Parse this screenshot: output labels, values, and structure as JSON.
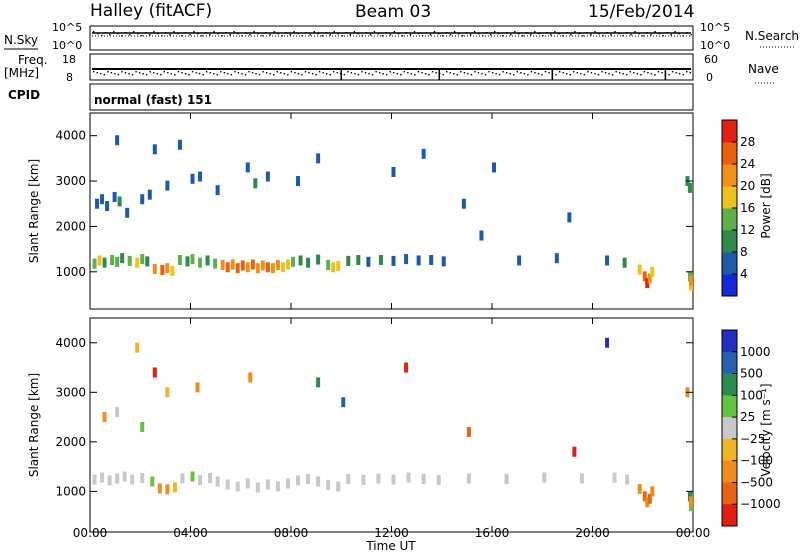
{
  "header": {
    "station": "Halley (fitACF)",
    "beam": "Beam 03",
    "date": "15/Feb/2014"
  },
  "top_panels": {
    "nsky_label": "N.Sky",
    "nsky_ticks": [
      "10^5",
      "10^0"
    ],
    "nsearch_label": "N.Search",
    "nsearch_ticks": [
      "10^5",
      "10^0"
    ],
    "freq_label_top": "Freq.",
    "freq_label_bottom": "[MHz]",
    "freq_ticks": [
      "18",
      "8"
    ],
    "nave_label": "Nave",
    "nave_ticks": [
      "60",
      "0"
    ],
    "cpid_label": "CPID",
    "cpid_value": "normal (fast) 151"
  },
  "colors": {
    "power": [
      "#1428d8",
      "#1e5aa8",
      "#2f8a4a",
      "#5fb04a",
      "#f0c020",
      "#f09018",
      "#e86010",
      "#e02010"
    ],
    "velocity": [
      "#2030c0",
      "#2860b0",
      "#2a8c50",
      "#62c440",
      "#c8c8c8",
      "#f0b428",
      "#f08c1c",
      "#e86414",
      "#e01e14"
    ]
  },
  "chart_data": [
    {
      "type": "heatmap",
      "name": "power",
      "ylabel": "Slant Range [km]",
      "xlim": [
        "00:00",
        "24:00"
      ],
      "ylim": [
        180,
        4500
      ],
      "yticks": [
        1000,
        2000,
        3000,
        4000
      ],
      "colorbar": {
        "label": "Power [dB]",
        "range": [
          0,
          32
        ],
        "ticks": [
          "4",
          "8",
          "12",
          "16",
          "20",
          "24",
          "28"
        ],
        "values": [
          4,
          8,
          12,
          16,
          20,
          24,
          28
        ]
      },
      "cells": [
        [
          0.1,
          1180,
          14
        ],
        [
          0.3,
          1250,
          16
        ],
        [
          0.5,
          1200,
          10
        ],
        [
          0.8,
          1260,
          14
        ],
        [
          1.0,
          1220,
          12
        ],
        [
          1.2,
          1300,
          8
        ],
        [
          1.5,
          1240,
          14
        ],
        [
          1.8,
          1200,
          16
        ],
        [
          2.0,
          1280,
          12
        ],
        [
          2.2,
          1230,
          10
        ],
        [
          2.5,
          1060,
          20
        ],
        [
          2.8,
          1040,
          24
        ],
        [
          3.0,
          1080,
          20
        ],
        [
          3.2,
          1020,
          16
        ],
        [
          3.5,
          1260,
          12
        ],
        [
          3.8,
          1230,
          10
        ],
        [
          4.0,
          1280,
          14
        ],
        [
          4.3,
          1200,
          12
        ],
        [
          4.6,
          1250,
          10
        ],
        [
          4.9,
          1180,
          14
        ],
        [
          5.2,
          1150,
          20
        ],
        [
          5.4,
          1100,
          24
        ],
        [
          5.6,
          1160,
          22
        ],
        [
          5.8,
          1080,
          26
        ],
        [
          6.0,
          1140,
          24
        ],
        [
          6.2,
          1100,
          20
        ],
        [
          6.4,
          1160,
          24
        ],
        [
          6.6,
          1080,
          22
        ],
        [
          6.8,
          1140,
          20
        ],
        [
          7.0,
          1100,
          24
        ],
        [
          7.2,
          1080,
          20
        ],
        [
          7.4,
          1150,
          22
        ],
        [
          7.6,
          1100,
          18
        ],
        [
          7.8,
          1160,
          16
        ],
        [
          8.0,
          1220,
          12
        ],
        [
          8.3,
          1250,
          10
        ],
        [
          8.6,
          1200,
          8
        ],
        [
          9.0,
          1270,
          10
        ],
        [
          9.4,
          1150,
          14
        ],
        [
          9.6,
          1100,
          18
        ],
        [
          9.8,
          1130,
          16
        ],
        [
          10.2,
          1240,
          8
        ],
        [
          10.6,
          1260,
          8
        ],
        [
          11.0,
          1220,
          6
        ],
        [
          11.5,
          1260,
          8
        ],
        [
          12.0,
          1240,
          6
        ],
        [
          12.5,
          1280,
          6
        ],
        [
          13.0,
          1250,
          6
        ],
        [
          13.5,
          1260,
          6
        ],
        [
          14.0,
          1230,
          6
        ],
        [
          0.2,
          2500,
          6
        ],
        [
          0.4,
          2600,
          6
        ],
        [
          0.6,
          2450,
          6
        ],
        [
          0.9,
          2650,
          6
        ],
        [
          1.1,
          2550,
          8
        ],
        [
          1.4,
          2300,
          6
        ],
        [
          2.0,
          2600,
          6
        ],
        [
          2.3,
          2700,
          6
        ],
        [
          3.0,
          2900,
          6
        ],
        [
          4.0,
          3050,
          6
        ],
        [
          4.3,
          3100,
          6
        ],
        [
          5.0,
          2800,
          6
        ],
        [
          6.5,
          2950,
          8
        ],
        [
          7.0,
          3100,
          6
        ],
        [
          8.2,
          3000,
          6
        ],
        [
          1.0,
          3900,
          6
        ],
        [
          2.5,
          3700,
          6
        ],
        [
          3.5,
          3800,
          6
        ],
        [
          6.2,
          3300,
          6
        ],
        [
          9.0,
          3500,
          6
        ],
        [
          12.0,
          3200,
          6
        ],
        [
          15.5,
          1800,
          6
        ],
        [
          17.0,
          1250,
          6
        ],
        [
          18.5,
          1300,
          6
        ],
        [
          20.5,
          1250,
          6
        ],
        [
          21.2,
          1200,
          8
        ],
        [
          21.8,
          1050,
          16
        ],
        [
          22.0,
          900,
          24
        ],
        [
          22.1,
          750,
          28
        ],
        [
          22.2,
          850,
          20
        ],
        [
          22.3,
          1000,
          16
        ],
        [
          23.8,
          900,
          12
        ],
        [
          23.9,
          700,
          16
        ],
        [
          24.0,
          800,
          20
        ],
        [
          23.7,
          3000,
          8
        ],
        [
          23.8,
          2850,
          8
        ],
        [
          19.0,
          2200,
          6
        ],
        [
          14.8,
          2500,
          6
        ],
        [
          13.2,
          3600,
          6
        ],
        [
          16.0,
          3300,
          6
        ]
      ]
    },
    {
      "type": "heatmap",
      "name": "velocity",
      "ylabel": "Slant Range [km]",
      "xlabel": "Time UT",
      "xticks": [
        "00:00",
        "04:00",
        "08:00",
        "12:00",
        "16:00",
        "20:00",
        "00:00"
      ],
      "xlim": [
        "00:00",
        "24:00"
      ],
      "ylim": [
        180,
        4500
      ],
      "yticks": [
        1000,
        2000,
        3000,
        4000
      ],
      "colorbar": {
        "label": "Velocity [m s⁻¹]",
        "ticks": [
          "1000",
          "500",
          "100",
          "25",
          "−25",
          "−100",
          "−500",
          "−1000"
        ]
      },
      "cells": [
        [
          0.1,
          1240,
          4
        ],
        [
          0.4,
          1280,
          4
        ],
        [
          0.7,
          1220,
          4
        ],
        [
          1.0,
          1260,
          4
        ],
        [
          1.3,
          1300,
          4
        ],
        [
          1.6,
          1240,
          4
        ],
        [
          2.0,
          1270,
          4
        ],
        [
          2.4,
          1200,
          3
        ],
        [
          2.7,
          1060,
          6
        ],
        [
          3.0,
          1040,
          6
        ],
        [
          3.3,
          1080,
          5
        ],
        [
          3.6,
          1260,
          4
        ],
        [
          4.0,
          1300,
          3
        ],
        [
          4.3,
          1230,
          4
        ],
        [
          4.7,
          1270,
          4
        ],
        [
          5.0,
          1200,
          4
        ],
        [
          5.4,
          1140,
          4
        ],
        [
          5.8,
          1100,
          4
        ],
        [
          6.2,
          1160,
          4
        ],
        [
          6.6,
          1080,
          4
        ],
        [
          7.0,
          1140,
          4
        ],
        [
          7.4,
          1100,
          4
        ],
        [
          7.8,
          1160,
          4
        ],
        [
          8.2,
          1220,
          4
        ],
        [
          8.6,
          1250,
          4
        ],
        [
          9.0,
          1200,
          4
        ],
        [
          9.4,
          1130,
          4
        ],
        [
          9.8,
          1100,
          4
        ],
        [
          10.2,
          1250,
          4
        ],
        [
          10.8,
          1230,
          4
        ],
        [
          11.4,
          1260,
          4
        ],
        [
          12.0,
          1240,
          4
        ],
        [
          12.6,
          1280,
          4
        ],
        [
          13.2,
          1250,
          4
        ],
        [
          13.8,
          1230,
          4
        ],
        [
          15.0,
          1260,
          4
        ],
        [
          16.5,
          1250,
          4
        ],
        [
          18.0,
          1280,
          4
        ],
        [
          19.5,
          1260,
          4
        ],
        [
          20.8,
          1280,
          4
        ],
        [
          21.3,
          1240,
          4
        ],
        [
          21.8,
          1050,
          6
        ],
        [
          22.0,
          900,
          7
        ],
        [
          22.1,
          780,
          6
        ],
        [
          22.2,
          850,
          7
        ],
        [
          22.3,
          1000,
          6
        ],
        [
          23.8,
          900,
          2
        ],
        [
          23.9,
          700,
          3
        ],
        [
          24.0,
          800,
          6
        ],
        [
          0.5,
          2500,
          6
        ],
        [
          1.0,
          2600,
          4
        ],
        [
          2.0,
          2300,
          3
        ],
        [
          3.0,
          3000,
          5
        ],
        [
          4.2,
          3100,
          6
        ],
        [
          6.3,
          3300,
          6
        ],
        [
          9.0,
          3200,
          2
        ],
        [
          12.5,
          3500,
          8
        ],
        [
          15.0,
          2200,
          7
        ],
        [
          19.2,
          1800,
          8
        ],
        [
          23.7,
          3000,
          6
        ],
        [
          1.8,
          3900,
          5
        ],
        [
          2.5,
          3400,
          8
        ],
        [
          10.0,
          2800,
          1
        ],
        [
          20.5,
          4000,
          0
        ]
      ]
    }
  ]
}
